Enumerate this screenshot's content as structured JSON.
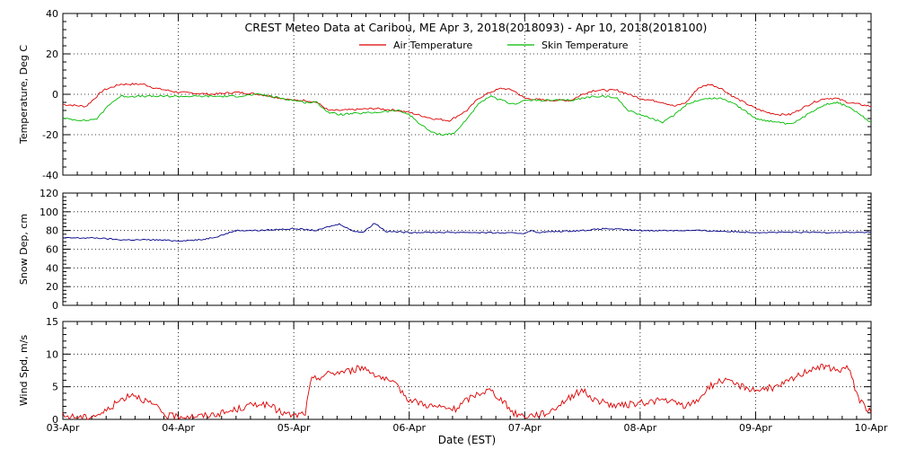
{
  "chart_data": {
    "type": "line",
    "title": "CREST Meteo Data at Caribou, ME   Apr  3, 2018(2018093) - Apr 10, 2018(2018100)",
    "xlabel": "Date (EST)",
    "x_ticks": [
      "03-Apr",
      "04-Apr",
      "05-Apr",
      "06-Apr",
      "07-Apr",
      "08-Apr",
      "09-Apr",
      "10-Apr"
    ],
    "xlim_days": [
      0,
      7
    ],
    "grid": true,
    "legend": "top-center",
    "panels": [
      {
        "id": "temperature",
        "ylabel": "Temperature, Deg C",
        "ylim": [
          -40,
          40
        ],
        "yticks": [
          "-40",
          "-20",
          "0",
          "20",
          "40"
        ],
        "series": [
          {
            "name": "Air Temperature",
            "color": "#dd0000",
            "x": [
              0,
              0.2,
              0.35,
              0.5,
              0.7,
              0.8,
              1.0,
              1.3,
              1.5,
              1.7,
              1.9,
              2.0,
              2.1,
              2.2,
              2.3,
              2.4,
              2.7,
              2.9,
              3.0,
              3.2,
              3.35,
              3.5,
              3.6,
              3.7,
              3.8,
              3.9,
              4.0,
              4.2,
              4.4,
              4.5,
              4.6,
              4.7,
              4.8,
              4.9,
              5.0,
              5.2,
              5.3,
              5.4,
              5.5,
              5.6,
              5.7,
              5.8,
              6.0,
              6.1,
              6.2,
              6.3,
              6.4,
              6.5,
              6.6,
              6.7,
              6.8,
              7.0
            ],
            "y": [
              -5,
              -6,
              2,
              5,
              5,
              3,
              1,
              0,
              1,
              0,
              -2,
              -3,
              -3,
              -4,
              -8,
              -8,
              -7,
              -8,
              -9,
              -12,
              -13,
              -8,
              -2,
              1,
              3,
              2,
              -2,
              -3,
              -3,
              0,
              2,
              2,
              2,
              0,
              -2,
              -4,
              -6,
              -4,
              3,
              5,
              3,
              -1,
              -7,
              -9,
              -10,
              -10,
              -7,
              -4,
              -2,
              -2,
              -4,
              -6
            ]
          },
          {
            "name": "Skin Temperature",
            "color": "#00bb00",
            "x": [
              0,
              0.2,
              0.3,
              0.4,
              0.5,
              0.7,
              0.8,
              1.0,
              1.3,
              1.5,
              1.7,
              1.9,
              2.0,
              2.1,
              2.2,
              2.3,
              2.4,
              2.7,
              2.9,
              3.0,
              3.1,
              3.2,
              3.3,
              3.4,
              3.5,
              3.6,
              3.7,
              3.8,
              3.9,
              4.0,
              4.2,
              4.4,
              4.6,
              4.7,
              4.8,
              4.9,
              5.0,
              5.1,
              5.2,
              5.3,
              5.4,
              5.5,
              5.6,
              5.7,
              5.8,
              6.0,
              6.2,
              6.3,
              6.4,
              6.5,
              6.6,
              6.7,
              6.8,
              7.0
            ],
            "y": [
              -12,
              -13,
              -12,
              -5,
              -1,
              -1,
              -1,
              -1,
              -1,
              -1,
              0,
              -2,
              -3,
              -4,
              -4,
              -9,
              -10,
              -9,
              -8,
              -10,
              -15,
              -19,
              -20,
              -19,
              -12,
              -5,
              -1,
              -3,
              -5,
              -3,
              -3,
              -3,
              -1,
              -1,
              -2,
              -8,
              -10,
              -12,
              -14,
              -10,
              -5,
              -3,
              -2,
              -2,
              -4,
              -12,
              -14,
              -15,
              -12,
              -8,
              -5,
              -4,
              -6,
              -14
            ]
          }
        ]
      },
      {
        "id": "snow",
        "ylabel": "Snow Dep, cm",
        "ylim": [
          0,
          120
        ],
        "yticks": [
          "0",
          "20",
          "40",
          "60",
          "80",
          "100",
          "120"
        ],
        "series": [
          {
            "name": "",
            "color": "#000088",
            "x": [
              0,
              0.3,
              0.5,
              0.8,
              1.0,
              1.2,
              1.35,
              1.5,
              1.7,
              2.0,
              2.2,
              2.3,
              2.4,
              2.5,
              2.6,
              2.7,
              2.8,
              3.0,
              3.5,
              4.0,
              4.05,
              4.1,
              4.5,
              4.7,
              5.0,
              5.5,
              6.0,
              6.5,
              7.0
            ],
            "y": [
              72,
              72,
              70,
              70,
              69,
              70,
              74,
              80,
              80,
              82,
              80,
              84,
              87,
              80,
              78,
              88,
              79,
              78,
              78,
              77,
              80,
              78,
              80,
              82,
              80,
              80,
              78,
              78,
              78
            ]
          }
        ]
      },
      {
        "id": "wind",
        "ylabel": "Wind Spd, m/s",
        "ylim": [
          0,
          15
        ],
        "yticks": [
          "0",
          "5",
          "10",
          "15"
        ],
        "series": [
          {
            "name": "",
            "color": "#dd0000",
            "x": [
              0,
              0.2,
              0.35,
              0.5,
              0.6,
              0.7,
              0.8,
              0.9,
              1.0,
              1.2,
              1.4,
              1.6,
              1.7,
              1.8,
              1.9,
              2.0,
              2.1,
              2.15,
              2.3,
              2.5,
              2.6,
              2.7,
              2.8,
              2.9,
              3.0,
              3.2,
              3.4,
              3.5,
              3.6,
              3.7,
              3.8,
              3.9,
              4.0,
              4.2,
              4.4,
              4.5,
              4.6,
              4.8,
              5.0,
              5.2,
              5.4,
              5.5,
              5.6,
              5.7,
              5.8,
              6.0,
              6.2,
              6.3,
              6.4,
              6.5,
              6.6,
              6.7,
              6.8,
              6.9,
              7.0
            ],
            "y": [
              0.5,
              0.3,
              1,
              3,
              4,
              3,
              2,
              0.5,
              0.5,
              0.5,
              1,
              2,
              2.5,
              2,
              1,
              0.5,
              1,
              6,
              7,
              7.5,
              8,
              7,
              6,
              5,
              3,
              2,
              1.5,
              3,
              4,
              4.5,
              3,
              1,
              0.5,
              1,
              3.5,
              4.5,
              3,
              2,
              2.5,
              3,
              2,
              3,
              5,
              6,
              5.5,
              4.5,
              5,
              6,
              7,
              8,
              8,
              7.5,
              8,
              3,
              1
            ]
          }
        ]
      }
    ]
  }
}
